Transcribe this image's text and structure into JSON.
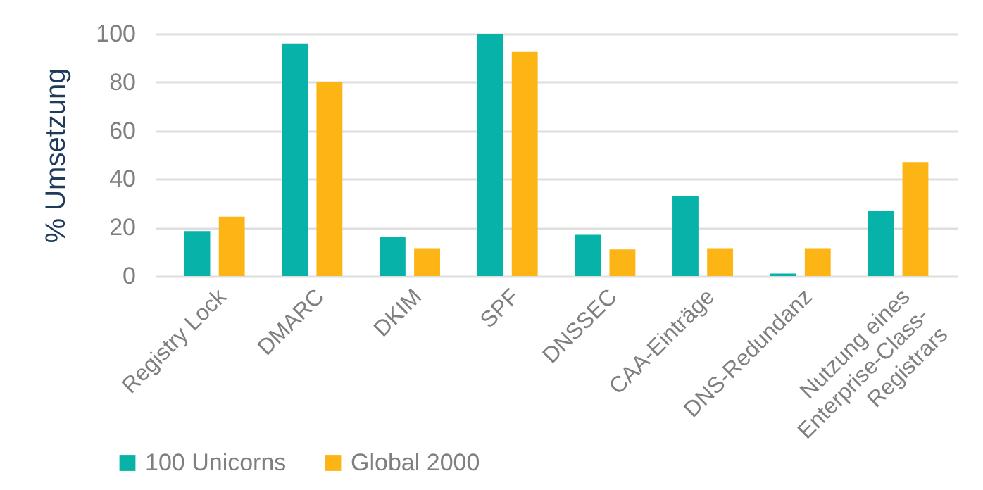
{
  "chart_data": {
    "type": "bar",
    "ylabel": "% Umsetzung",
    "categories": [
      "Registry Lock",
      "DMARC",
      "DKIM",
      "SPF",
      "DNSSEC",
      "CAA-Einträge",
      "DNS-Redundanz",
      "Nutzung eines Enterprise-Class-Registrars"
    ],
    "series": [
      {
        "name": "100 Unicorns",
        "color": "#07b3a8",
        "values": [
          18.5,
          96,
          16,
          100,
          17,
          33,
          1,
          27
        ]
      },
      {
        "name": "Global 2000",
        "color": "#fdb515",
        "values": [
          24.5,
          80,
          11.5,
          92.5,
          11,
          11.5,
          11.5,
          47
        ]
      }
    ],
    "ylim": [
      0,
      100
    ],
    "yticks": [
      0,
      20,
      40,
      60,
      80,
      100
    ],
    "grid": "y",
    "legend": "bottom left"
  }
}
